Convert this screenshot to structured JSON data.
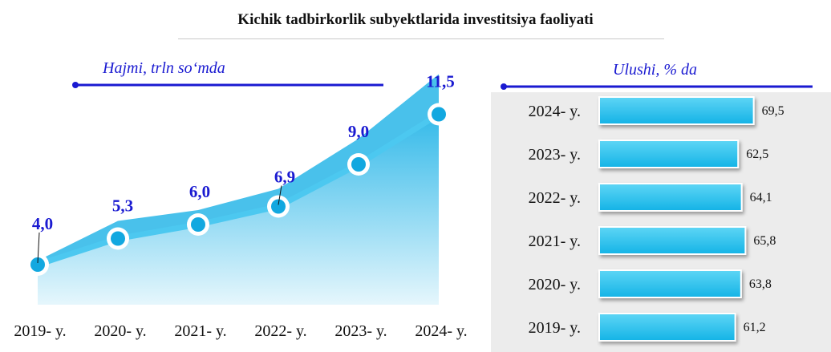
{
  "title": "Kichik tadbirkorlik subyektlarida investitsiya faoliyati",
  "chart_data": [
    {
      "type": "area",
      "title": "Hajmi, trln so‘mda",
      "categories": [
        "2019- y.",
        "2020- y.",
        "2021- y.",
        "2022- y.",
        "2023- y.",
        "2024- y."
      ],
      "values": [
        4.0,
        5.3,
        6.0,
        6.9,
        9.0,
        11.5
      ],
      "value_labels": [
        "4,0",
        "5,3",
        "6,0",
        "6,9",
        "9,0",
        "11,5"
      ],
      "ylim": [
        3,
        13
      ],
      "grid": false,
      "colors": {
        "line": "#2bbbe9",
        "area": "#29b6e8",
        "marker_fill": "#12a8e0",
        "label": "#1a1ad1"
      }
    },
    {
      "type": "bar",
      "orientation": "horizontal",
      "title": "Ulushi, % da",
      "categories": [
        "2024- y.",
        "2023- y.",
        "2022- y.",
        "2021- y.",
        "2020- y.",
        "2019- y."
      ],
      "values": [
        69.5,
        62.5,
        64.1,
        65.8,
        63.8,
        61.2
      ],
      "value_labels": [
        "69,5",
        "62,5",
        "64,1",
        "65,8",
        "63,8",
        "61,2"
      ],
      "xlim": [
        0,
        70
      ],
      "grid": false,
      "colors": {
        "bar": "#1ec0ee",
        "bar_light": "#5ed5f5",
        "panel": "#ececec"
      }
    }
  ]
}
